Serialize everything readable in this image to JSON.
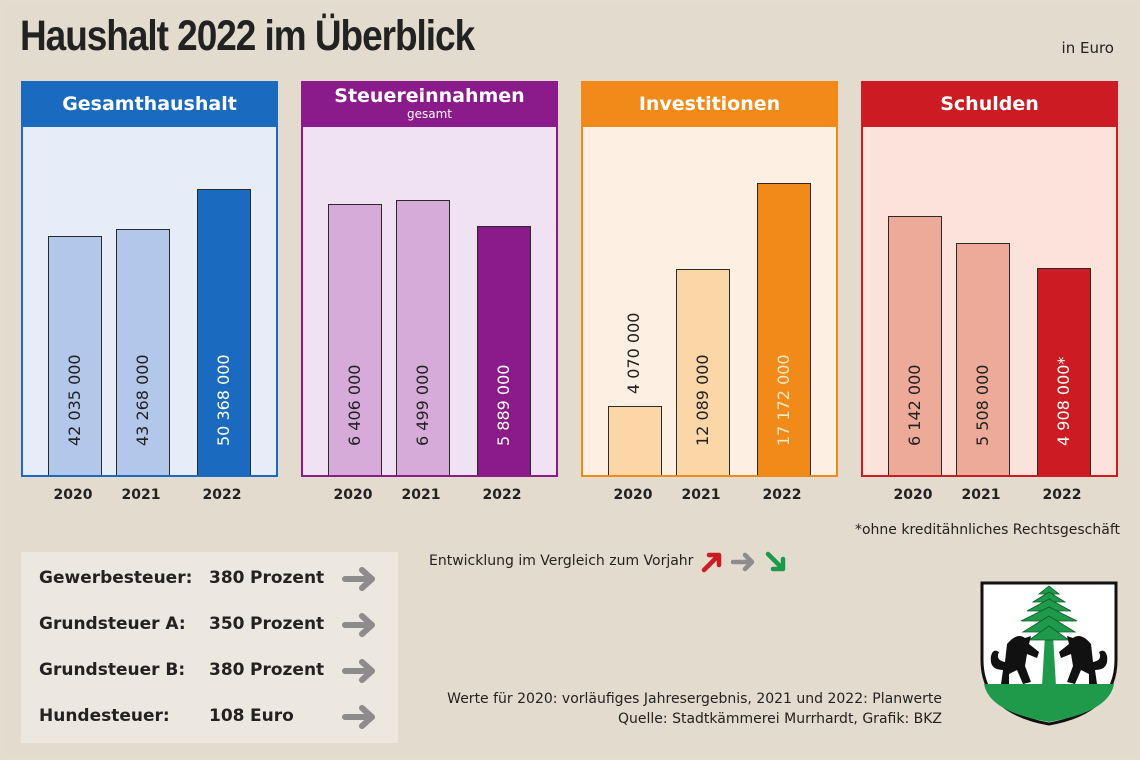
{
  "title": "Haushalt 2022 im Überblick",
  "unit_note": "in Euro",
  "chart_data": {
    "type": "bar",
    "title": "Haushalt 2022 im Überblick",
    "unit": "Euro",
    "categories": [
      "2020",
      "2021",
      "2022"
    ],
    "panels": [
      {
        "id": "gesamthaushalt",
        "title": "Gesamthaushalt",
        "subtitle": "",
        "header_color": "#1a6bbf",
        "body_color": "#e6ecf8",
        "bar_colors": [
          "#b3c7ea",
          "#b3c7ea",
          "#1a6bbf"
        ],
        "label_colors": [
          "#222222",
          "#222222",
          "#ffffff"
        ],
        "values": [
          42035000,
          43268000,
          50368000
        ],
        "labels": [
          "42 035 000",
          "43 268 000",
          "50 368 000"
        ]
      },
      {
        "id": "steuereinnahmen",
        "title": "Steuereinnahmen",
        "subtitle": "gesamt",
        "header_color": "#8b1a8a",
        "body_color": "#f1e2f3",
        "bar_colors": [
          "#d6aad9",
          "#d6aad9",
          "#8b1a8a"
        ],
        "label_colors": [
          "#222222",
          "#222222",
          "#ffffff"
        ],
        "values": [
          6406000,
          6499000,
          5889000
        ],
        "labels": [
          "6 406 000",
          "6 499 000",
          "5 889 000"
        ]
      },
      {
        "id": "investitionen",
        "title": "Investitionen",
        "subtitle": "",
        "header_color": "#f28a1a",
        "body_color": "#fdf0e2",
        "bar_colors": [
          "#fbd7a8",
          "#fbd7a8",
          "#f28a1a"
        ],
        "label_colors": [
          "#222222",
          "#222222",
          "#fde8c8"
        ],
        "values": [
          4070000,
          12089000,
          17172000
        ],
        "labels": [
          "4 070 000",
          "12 089 000",
          "17 172 000"
        ]
      },
      {
        "id": "schulden",
        "title": "Schulden",
        "subtitle": "",
        "header_color": "#cc1b22",
        "body_color": "#fbe3db",
        "bar_colors": [
          "#eeaa98",
          "#eeaa98",
          "#cc1b22"
        ],
        "label_colors": [
          "#222222",
          "#222222",
          "#ffffff"
        ],
        "values": [
          6142000,
          5508000,
          4908000
        ],
        "labels": [
          "6 142 000",
          "5 508 000",
          "4 908 000*"
        ]
      }
    ]
  },
  "footnote": "*ohne kreditähnliches Rechtsgeschäft",
  "tax_rates": [
    {
      "name": "Gewerbesteuer:",
      "value": "380",
      "unit": "Prozent",
      "trend": "unchanged"
    },
    {
      "name": "Grundsteuer A:",
      "value": "350",
      "unit": "Prozent",
      "trend": "unchanged"
    },
    {
      "name": "Grundsteuer B:",
      "value": "380",
      "unit": "Prozent",
      "trend": "unchanged"
    },
    {
      "name": "Hundesteuer:",
      "value": "108",
      "unit": "Euro",
      "trend": "unchanged"
    }
  ],
  "legend": {
    "label": "Entwicklung im Vergleich zum Vorjahr",
    "items": [
      {
        "icon": "arrow-up-right-icon",
        "meaning": "up",
        "color": "#cc1b22"
      },
      {
        "icon": "arrow-right-icon",
        "meaning": "unchanged",
        "color": "#8c8c8c"
      },
      {
        "icon": "arrow-down-right-icon",
        "meaning": "down",
        "color": "#1a9a4a"
      }
    ]
  },
  "source": {
    "line1": "Werte für 2020: vorläufiges Jahresergebnis, 2021 und 2022: Planwerte",
    "line2": "Quelle: Stadtkämmerei Murrhardt, Grafik: BKZ"
  },
  "crest": {
    "name": "coat-of-arms",
    "colors": {
      "tree": "#1f9a4a",
      "ground": "#1f9a4a",
      "animals": "#111111",
      "field": "#ffffff"
    }
  }
}
